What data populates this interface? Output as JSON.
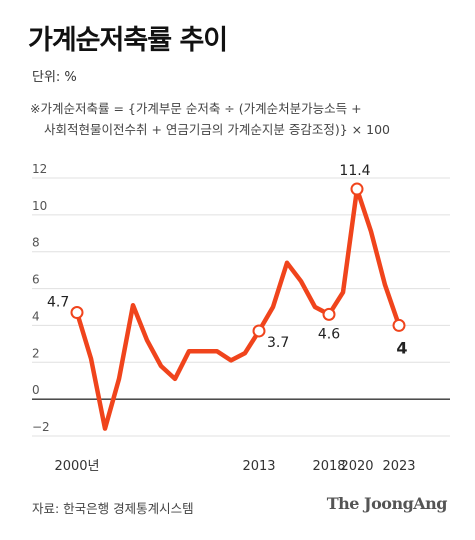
{
  "title": "가계순저축률 추이",
  "unit": "단위: %",
  "note_line1": "※가계순저축률 = {가계부문 순저축 ÷ (가계순처분가능소득 +",
  "note_line2": "사회적현물이전수취 + 연금기금의 가계순지분 증감조정)} × 100",
  "source": "자료: 한국은행 경제통계시스템",
  "brand": "The JoongAng",
  "colors": {
    "line": "#f0441c",
    "gridline": "#e0e0e0",
    "zero_line": "#333333"
  },
  "chart_data": {
    "type": "line",
    "title": "가계순저축률 추이",
    "ylabel": "%",
    "ylim": [
      -2,
      12
    ],
    "yticks": [
      "12",
      "10",
      "8",
      "6",
      "4",
      "2",
      "0",
      "−2"
    ],
    "ytick_values": [
      12,
      10,
      8,
      6,
      4,
      2,
      0,
      -2
    ],
    "xticks": [
      "2000년",
      "2013",
      "2018",
      "2020",
      "2023"
    ],
    "xtick_years": [
      2000,
      2013,
      2018,
      2020,
      2023
    ],
    "grid": true,
    "x": [
      2000,
      2001,
      2002,
      2003,
      2004,
      2005,
      2006,
      2007,
      2008,
      2009,
      2010,
      2011,
      2012,
      2013,
      2014,
      2015,
      2016,
      2017,
      2018,
      2019,
      2020,
      2021,
      2022,
      2023
    ],
    "series": [
      {
        "values": [
          4.7,
          2.2,
          -1.6,
          1.1,
          5.1,
          3.2,
          1.8,
          1.1,
          2.6,
          2.6,
          2.6,
          2.1,
          2.5,
          3.7,
          5.0,
          7.4,
          6.4,
          5.0,
          4.6,
          5.8,
          11.4,
          9.1,
          6.2,
          4.0
        ]
      }
    ],
    "annotations": [
      {
        "x": 2000,
        "y": 4.7,
        "text": "4.7"
      },
      {
        "x": 2013,
        "y": 3.7,
        "text": "3.7"
      },
      {
        "x": 2018,
        "y": 4.6,
        "text": "4.6"
      },
      {
        "x": 2020,
        "y": 11.4,
        "text": "11.4"
      },
      {
        "x": 2023,
        "y": 4.0,
        "text": "4"
      }
    ]
  }
}
